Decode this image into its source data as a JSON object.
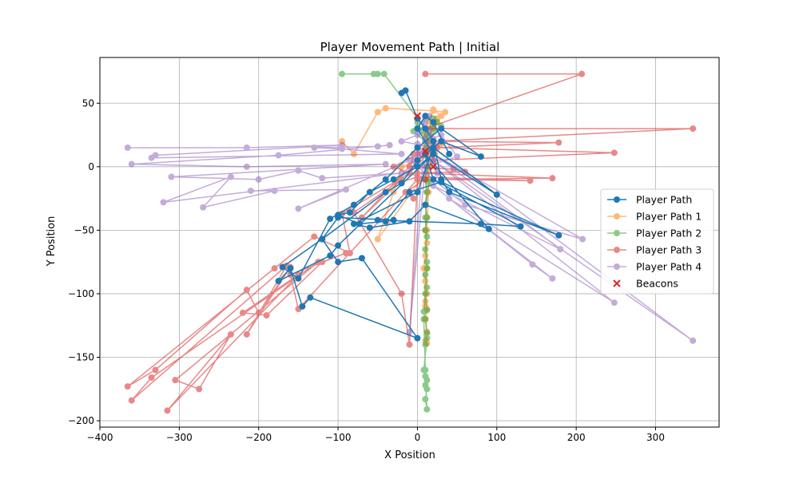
{
  "chart_data": {
    "type": "line",
    "title": "Player Movement Path | Initial",
    "xlabel": "X Position",
    "ylabel": "Y Position",
    "xlim": [
      -400,
      380
    ],
    "ylim": [
      -205,
      86
    ],
    "xticks": [
      -400,
      -300,
      -200,
      -100,
      0,
      100,
      200,
      300
    ],
    "yticks": [
      -200,
      -150,
      -100,
      -50,
      0,
      50
    ],
    "grid": true,
    "legend_position": "center-right",
    "series": [
      {
        "name": "Player Path",
        "color": "#1f77b4",
        "opacity": 1.0,
        "markers": true,
        "points": [
          [
            -20,
            58
          ],
          [
            -15,
            60
          ],
          [
            0,
            38
          ],
          [
            10,
            30
          ],
          [
            20,
            20
          ],
          [
            30,
            -10
          ],
          [
            40,
            -20
          ],
          [
            178,
            -54
          ],
          [
            30,
            -12
          ],
          [
            -10,
            -20
          ],
          [
            -40,
            -43
          ],
          [
            -73,
            -45
          ],
          [
            -100,
            -38
          ],
          [
            -85,
            -36
          ],
          [
            -60,
            -20
          ],
          [
            -30,
            -10
          ],
          [
            0,
            0
          ],
          [
            20,
            10
          ],
          [
            -100,
            -62
          ],
          [
            -110,
            -70
          ],
          [
            -175,
            -90
          ],
          [
            -160,
            -80
          ],
          [
            -145,
            -110
          ],
          [
            -135,
            -103
          ],
          [
            0,
            -135
          ],
          [
            -70,
            -72
          ],
          [
            -100,
            -75
          ],
          [
            -120,
            -57
          ],
          [
            -170,
            -79
          ],
          [
            -150,
            -88
          ],
          [
            -110,
            -41
          ],
          [
            -80,
            -30
          ],
          [
            -40,
            -10
          ],
          [
            0,
            15
          ],
          [
            30,
            30
          ],
          [
            80,
            8
          ],
          [
            30,
            20
          ],
          [
            0,
            5
          ],
          [
            -20,
            -13
          ],
          [
            -40,
            -20
          ],
          [
            -120,
            -57
          ],
          [
            -100,
            -40
          ],
          [
            -30,
            -42
          ],
          [
            -50,
            -42
          ],
          [
            80,
            -45
          ],
          [
            130,
            -47
          ],
          [
            20,
            -10
          ],
          [
            10,
            10
          ],
          [
            90,
            -49
          ],
          [
            10,
            -30
          ],
          [
            -10,
            -43
          ],
          [
            -60,
            -48
          ],
          [
            -80,
            -45
          ],
          [
            0,
            -20
          ],
          [
            20,
            15
          ],
          [
            100,
            -22
          ],
          [
            20,
            10
          ],
          [
            0,
            30
          ],
          [
            10,
            40
          ],
          [
            20,
            35
          ],
          [
            40,
            10
          ]
        ]
      },
      {
        "name": "Player Path 1",
        "color": "#ff7f0e",
        "opacity": 0.55,
        "markers": true,
        "points": [
          [
            -95,
            20
          ],
          [
            -80,
            10
          ],
          [
            -50,
            43
          ],
          [
            -40,
            46
          ],
          [
            20,
            44
          ],
          [
            35,
            43
          ],
          [
            25,
            38
          ],
          [
            12,
            30
          ],
          [
            10,
            25
          ],
          [
            15,
            20
          ],
          [
            10,
            10
          ],
          [
            12,
            0
          ],
          [
            10,
            -10
          ],
          [
            12,
            -20
          ],
          [
            10,
            -30
          ],
          [
            12,
            -40
          ],
          [
            10,
            -50
          ],
          [
            12,
            -60
          ],
          [
            10,
            -70
          ],
          [
            12,
            -80
          ],
          [
            10,
            -90
          ],
          [
            12,
            -100
          ],
          [
            10,
            -106
          ],
          [
            12,
            -112
          ],
          [
            10,
            -120
          ],
          [
            12,
            -130
          ],
          [
            10,
            -137
          ],
          [
            12,
            -139
          ],
          [
            10,
            -110
          ],
          [
            8,
            -80
          ],
          [
            12,
            -50
          ],
          [
            14,
            -20
          ],
          [
            16,
            10
          ],
          [
            20,
            30
          ],
          [
            30,
            40
          ],
          [
            20,
            45
          ],
          [
            15,
            35
          ],
          [
            18,
            20
          ],
          [
            22,
            10
          ],
          [
            16,
            0
          ],
          [
            -50,
            -57
          ],
          [
            -30,
            -20
          ],
          [
            -20,
            0
          ],
          [
            0,
            5
          ],
          [
            20,
            12
          ],
          [
            30,
            18
          ],
          [
            10,
            15
          ]
        ]
      },
      {
        "name": "Player Path 2",
        "color": "#2ca02c",
        "opacity": 0.55,
        "markers": true,
        "points": [
          [
            -95,
            73
          ],
          [
            -55,
            73
          ],
          [
            -50,
            73
          ],
          [
            -42,
            73
          ],
          [
            10,
            30
          ],
          [
            12,
            20
          ],
          [
            10,
            10
          ],
          [
            12,
            0
          ],
          [
            10,
            -10
          ],
          [
            12,
            -20
          ],
          [
            10,
            -30
          ],
          [
            12,
            -40
          ],
          [
            10,
            -50
          ],
          [
            12,
            -55
          ],
          [
            10,
            -65
          ],
          [
            12,
            -75
          ],
          [
            10,
            -85
          ],
          [
            12,
            -95
          ],
          [
            10,
            -100
          ],
          [
            12,
            -113
          ],
          [
            8,
            -114
          ],
          [
            10,
            -120
          ],
          [
            12,
            -131
          ],
          [
            10,
            -140
          ],
          [
            12,
            -135
          ],
          [
            8,
            -160
          ],
          [
            10,
            -165
          ],
          [
            12,
            -168
          ],
          [
            10,
            -172
          ],
          [
            12,
            -175
          ],
          [
            10,
            -183
          ],
          [
            12,
            -191
          ],
          [
            10,
            -160
          ],
          [
            8,
            -120
          ],
          [
            12,
            -80
          ],
          [
            10,
            -40
          ],
          [
            14,
            -12
          ],
          [
            12,
            15
          ],
          [
            15,
            25
          ],
          [
            20,
            30
          ],
          [
            25,
            35
          ],
          [
            18,
            38
          ],
          [
            10,
            39
          ],
          [
            5,
            28
          ],
          [
            0,
            35
          ],
          [
            -5,
            28
          ],
          [
            10,
            20
          ],
          [
            30,
            32
          ],
          [
            20,
            38
          ],
          [
            12,
            25
          ]
        ]
      },
      {
        "name": "Player Path 3",
        "color": "#d62728",
        "opacity": 0.55,
        "markers": true,
        "points": [
          [
            10,
            73
          ],
          [
            207,
            73
          ],
          [
            10,
            30
          ],
          [
            347,
            30
          ],
          [
            20,
            20
          ],
          [
            178,
            19
          ],
          [
            25,
            15
          ],
          [
            248,
            11
          ],
          [
            20,
            5
          ],
          [
            -5,
            10
          ],
          [
            -10,
            -5
          ],
          [
            -95,
            -37
          ],
          [
            -85,
            -68
          ],
          [
            -130,
            -55
          ],
          [
            -180,
            -80
          ],
          [
            -365,
            -173
          ],
          [
            -330,
            -160
          ],
          [
            -215,
            -97
          ],
          [
            -200,
            -115
          ],
          [
            -160,
            -79
          ],
          [
            -215,
            -132
          ],
          [
            -165,
            -78
          ],
          [
            -360,
            -184
          ],
          [
            -335,
            -166
          ],
          [
            -125,
            -75
          ],
          [
            -305,
            -168
          ],
          [
            -275,
            -175
          ],
          [
            -235,
            -132
          ],
          [
            -315,
            -192
          ],
          [
            -150,
            -85
          ],
          [
            -220,
            -115
          ],
          [
            -190,
            -117
          ],
          [
            -120,
            -75
          ],
          [
            -90,
            -68
          ],
          [
            -160,
            -85
          ],
          [
            -150,
            -112
          ],
          [
            0,
            -10
          ],
          [
            -10,
            -140
          ],
          [
            -20,
            -100
          ],
          [
            -80,
            -36
          ],
          [
            -20,
            -10
          ],
          [
            -70,
            -40
          ],
          [
            -10,
            0
          ],
          [
            45,
            -2
          ],
          [
            60,
            -4
          ],
          [
            0,
            -5
          ],
          [
            170,
            -9
          ],
          [
            30,
            -10
          ],
          [
            142,
            -11
          ],
          [
            0,
            -8
          ],
          [
            -20,
            -12
          ],
          [
            20,
            15
          ],
          [
            30,
            20
          ],
          [
            0,
            10
          ],
          [
            -30,
            0
          ],
          [
            10,
            -10
          ],
          [
            -15,
            -20
          ],
          [
            -5,
            -25
          ]
        ]
      },
      {
        "name": "Player Path 4",
        "color": "#9467bd",
        "opacity": 0.55,
        "markers": true,
        "points": [
          [
            -365,
            15
          ],
          [
            -215,
            15
          ],
          [
            -95,
            17
          ],
          [
            -330,
            9
          ],
          [
            -335,
            7
          ],
          [
            -20,
            10
          ],
          [
            -95,
            14
          ],
          [
            -130,
            15
          ],
          [
            -50,
            16
          ],
          [
            -35,
            17
          ],
          [
            -175,
            9
          ],
          [
            -360,
            2
          ],
          [
            -215,
            0
          ],
          [
            -40,
            2
          ],
          [
            -310,
            -8
          ],
          [
            -200,
            -10
          ],
          [
            -150,
            -3
          ],
          [
            -120,
            -9
          ],
          [
            -20,
            -5
          ],
          [
            -320,
            -28
          ],
          [
            -235,
            -8
          ],
          [
            -270,
            -32
          ],
          [
            -180,
            -19
          ],
          [
            -210,
            -19
          ],
          [
            -90,
            -18
          ],
          [
            -150,
            -33
          ],
          [
            -10,
            5
          ],
          [
            10,
            -5
          ],
          [
            20,
            -10
          ],
          [
            40,
            -20
          ],
          [
            60,
            -30
          ],
          [
            208,
            -57
          ],
          [
            20,
            10
          ],
          [
            180,
            -65
          ],
          [
            20,
            -15
          ],
          [
            145,
            -77
          ],
          [
            170,
            -88
          ],
          [
            40,
            -25
          ],
          [
            248,
            -107
          ],
          [
            20,
            5
          ],
          [
            347,
            -137
          ],
          [
            10,
            20
          ],
          [
            30,
            25
          ],
          [
            50,
            8
          ],
          [
            10,
            0
          ],
          [
            -10,
            -130
          ],
          [
            10,
            30
          ],
          [
            15,
            40
          ],
          [
            0,
            25
          ],
          [
            -20,
            20
          ],
          [
            20,
            15
          ],
          [
            -5,
            5
          ],
          [
            10,
            22
          ],
          [
            25,
            -5
          ],
          [
            0,
            18
          ],
          [
            5,
            10
          ],
          [
            15,
            28
          ],
          [
            8,
            35
          ],
          [
            20,
            22
          ],
          [
            10,
            12
          ]
        ]
      },
      {
        "name": "Beacons",
        "color": "#d62728",
        "type": "scatter",
        "marker": "x",
        "points": [
          [
            0,
            40
          ],
          [
            20,
            0
          ],
          [
            10,
            12
          ]
        ]
      }
    ]
  }
}
